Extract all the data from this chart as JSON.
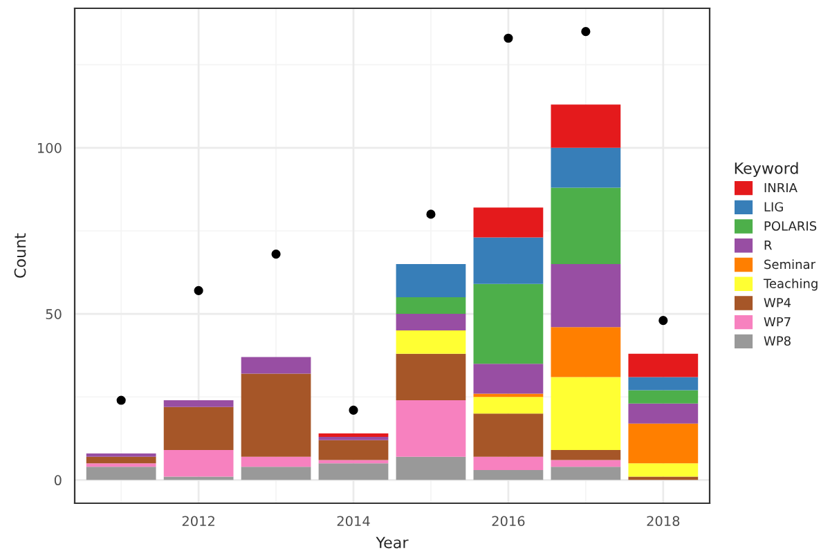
{
  "chart_data": {
    "type": "bar",
    "stacked": true,
    "xlabel": "Year",
    "ylabel": "Count",
    "legend_title": "Keyword",
    "legend": "right",
    "grid": true,
    "x": [
      2011,
      2012,
      2013,
      2014,
      2015,
      2016,
      2017,
      2018
    ],
    "xlim": [
      2010.4,
      2018.6
    ],
    "xticks": [
      2012,
      2014,
      2016,
      2018
    ],
    "ylim": [
      -7,
      142
    ],
    "yticks": [
      0,
      50,
      100
    ],
    "series": [
      {
        "name": "WP8",
        "color": "#999999",
        "values": [
          4,
          1,
          4,
          5,
          7,
          3,
          4,
          null
        ]
      },
      {
        "name": "WP7",
        "color": "#f781bf",
        "values": [
          1,
          8,
          3,
          1,
          17,
          4,
          2,
          null
        ]
      },
      {
        "name": "WP4",
        "color": "#a65628",
        "values": [
          2,
          13,
          25,
          6,
          14,
          13,
          3,
          1
        ]
      },
      {
        "name": "Teaching",
        "color": "#ffff33",
        "values": [
          null,
          null,
          null,
          null,
          7,
          5,
          22,
          4
        ]
      },
      {
        "name": "Seminar",
        "color": "#ff7f00",
        "values": [
          null,
          null,
          null,
          null,
          null,
          1,
          15,
          12
        ]
      },
      {
        "name": "R",
        "color": "#984ea3",
        "values": [
          1,
          2,
          5,
          1,
          5,
          9,
          19,
          6
        ]
      },
      {
        "name": "POLARIS",
        "color": "#4daf4a",
        "values": [
          null,
          null,
          null,
          null,
          5,
          24,
          23,
          4
        ]
      },
      {
        "name": "LIG",
        "color": "#377eb8",
        "values": [
          null,
          null,
          null,
          null,
          10,
          14,
          12,
          4
        ]
      },
      {
        "name": "INRIA",
        "color": "#e41a1c",
        "values": [
          null,
          null,
          null,
          1,
          null,
          9,
          13,
          7
        ]
      },
      {
        "type": "scatter",
        "color": "#000000",
        "marker": "circle",
        "values": [
          24,
          57,
          68,
          21,
          80,
          133,
          135,
          48
        ]
      }
    ]
  }
}
